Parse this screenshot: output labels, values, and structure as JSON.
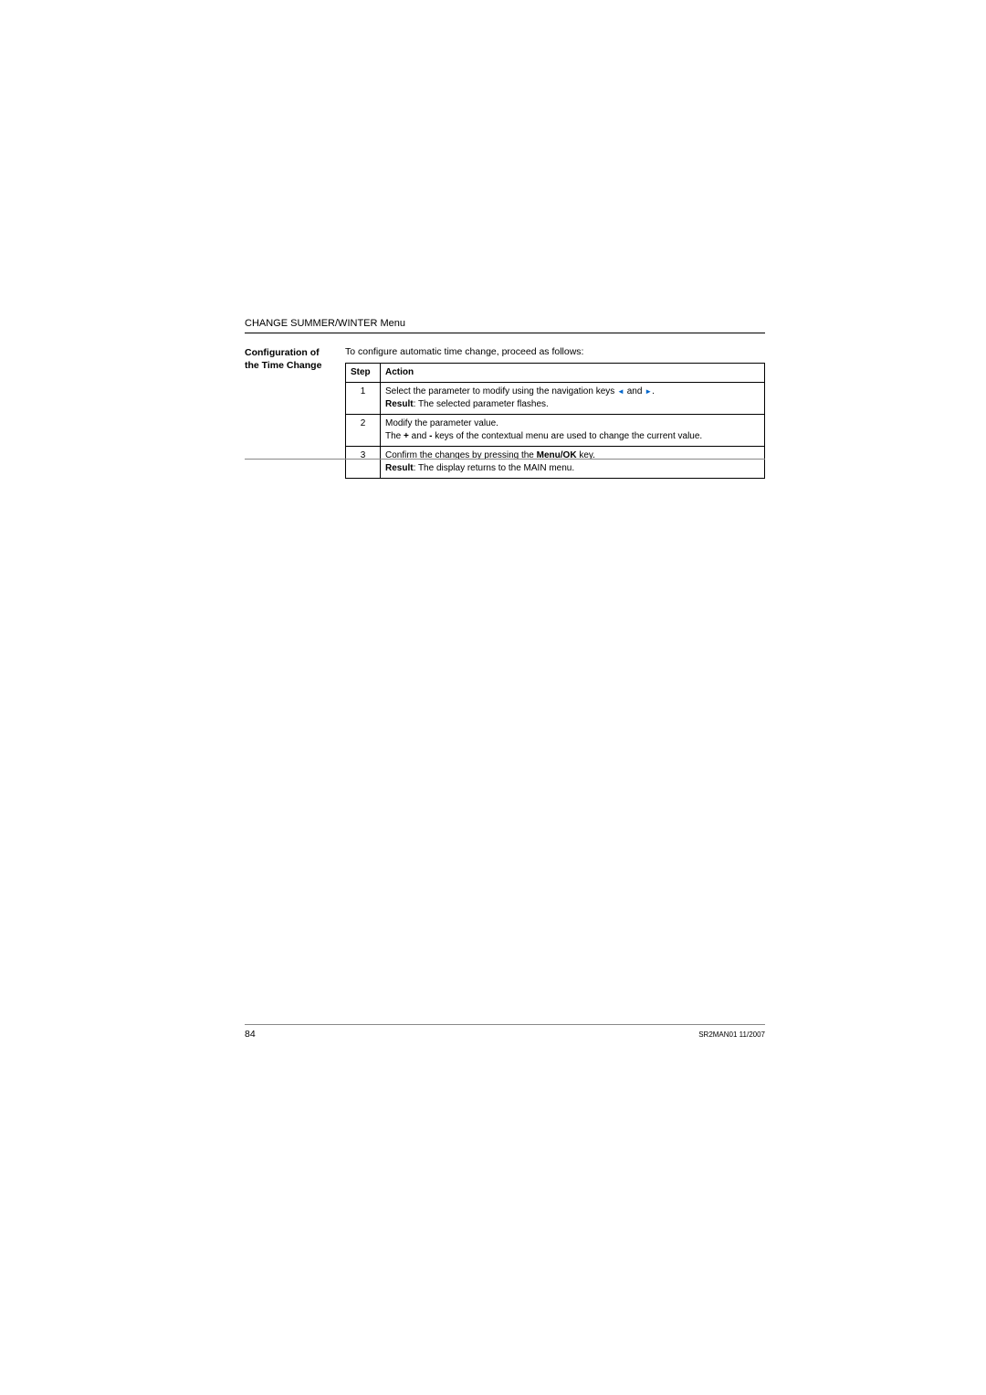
{
  "header": {
    "section_title": "CHANGE SUMMER/WINTER Menu"
  },
  "sidebar": {
    "label_line1": "Configuration of",
    "label_line2": "the Time Change"
  },
  "intro": "To configure automatic time change, proceed as follows:",
  "table": {
    "columns": {
      "step": "Step",
      "action": "Action"
    },
    "rows": [
      {
        "step": "1",
        "line1_prefix": "Select the parameter to modify using the navigation keys ",
        "arrow_left": "◄",
        "arrow_conj": " and ",
        "arrow_right": "►",
        "line1_suffix": ".",
        "result_label": "Result",
        "result_text": ": The selected parameter flashes."
      },
      {
        "step": "2",
        "line1": "Modify the parameter value.",
        "line2_prefix": "The ",
        "plus": "+",
        "mid1": " and ",
        "minus": "-",
        "line2_suffix": " keys of the contextual menu are used to change the current value."
      },
      {
        "step": "3",
        "line1_prefix": "Confirm the changes by pressing the ",
        "menu_ok": "Menu/OK",
        "line1_suffix": " key.",
        "result_label": "Result",
        "result_text": ": The display returns to the MAIN menu."
      }
    ]
  },
  "footer": {
    "page_number": "84",
    "doc_ref": "SR2MAN01 11/2007"
  },
  "colors": {
    "text": "#000000",
    "arrow": "#0066cc",
    "rule_light": "#888888",
    "background": "#ffffff"
  }
}
